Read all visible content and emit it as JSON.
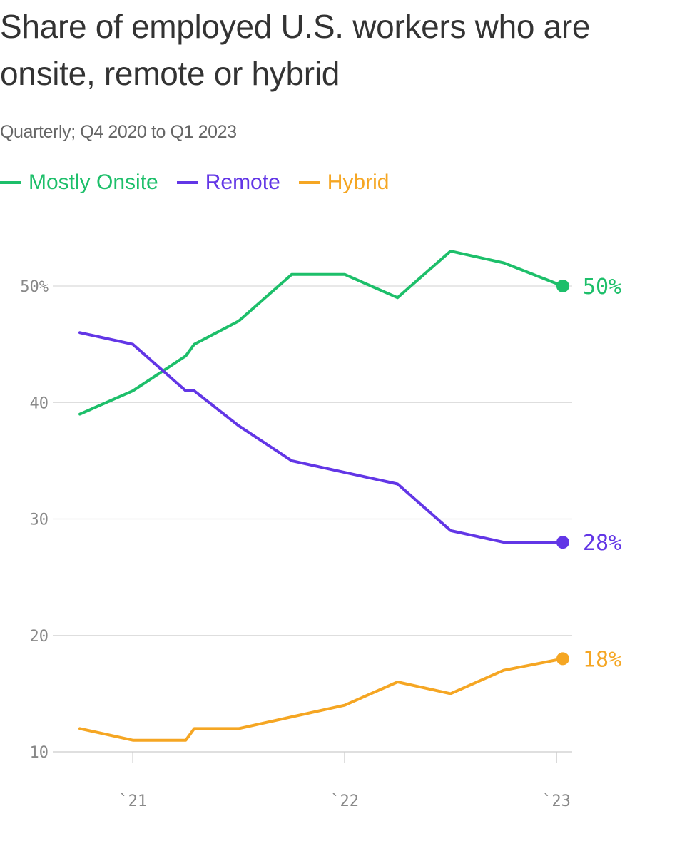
{
  "chart_data": {
    "type": "line",
    "title": "Share of employed U.S. workers who are onsite, remote or hybrid",
    "subtitle": "Quarterly; Q4 2020 to Q1 2023",
    "x": [
      2020.75,
      2021.0,
      2021.25,
      2021.29,
      2021.5,
      2021.75,
      2022.0,
      2022.25,
      2022.5,
      2022.75,
      2023.03
    ],
    "series": [
      {
        "name": "Mostly Onsite",
        "color": "#1dbf6a",
        "values": [
          39,
          41,
          44,
          45,
          47,
          51,
          51,
          49,
          53,
          52,
          50
        ],
        "end_label": "50%"
      },
      {
        "name": "Remote",
        "color": "#6236e6",
        "values": [
          46,
          45,
          41,
          41,
          38,
          35,
          34,
          33,
          29,
          28,
          28
        ],
        "end_label": "28%"
      },
      {
        "name": "Hybrid",
        "color": "#f5a623",
        "values": [
          12,
          11,
          11,
          12,
          12,
          13,
          14,
          16,
          15,
          17,
          18
        ],
        "end_label": "18%"
      }
    ],
    "y_ticks": [
      {
        "value": 50,
        "label": "50%"
      },
      {
        "value": 40,
        "label": "40"
      },
      {
        "value": 30,
        "label": "30"
      },
      {
        "value": 20,
        "label": "20"
      },
      {
        "value": 10,
        "label": "10"
      }
    ],
    "x_ticks": [
      {
        "value": 2021,
        "label": "`21"
      },
      {
        "value": 2022,
        "label": "`22"
      },
      {
        "value": 2023,
        "label": "`23"
      }
    ],
    "xlim": [
      2020.75,
      2023.03
    ],
    "ylim": [
      10,
      53
    ],
    "grid": "horizontal"
  }
}
